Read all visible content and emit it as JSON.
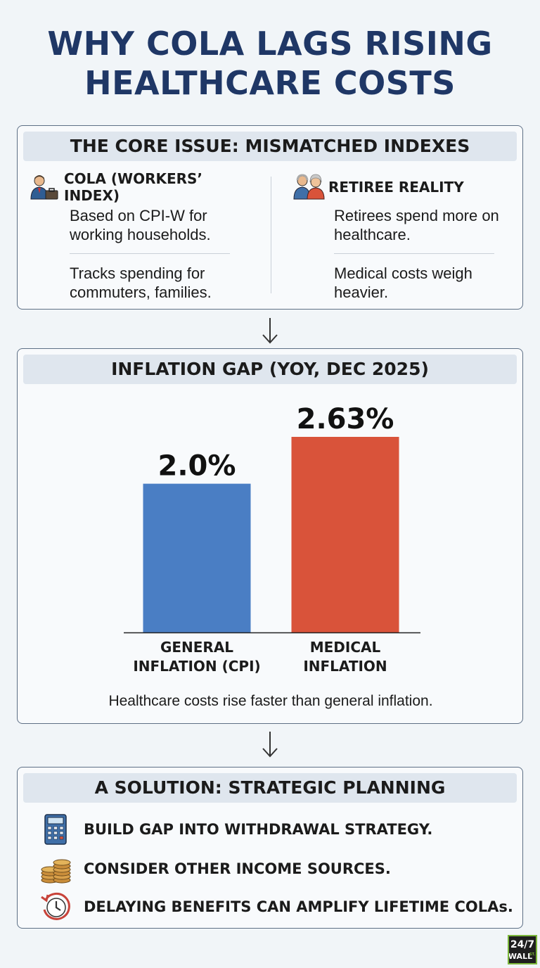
{
  "title": {
    "line1": "WHY COLA LAGS RISING",
    "line2": "HEALTHCARE COSTS"
  },
  "core": {
    "heading": "THE CORE ISSUE: MISMATCHED INDEXES",
    "left": {
      "icon": "worker-icon",
      "title": "COLA (WORKERS’ INDEX)",
      "points": [
        "Based on CPI-W for working households.",
        "Tracks spending for commuters, families."
      ]
    },
    "right": {
      "icon": "retirees-icon",
      "title": "RETIREE REALITY",
      "points": [
        "Retirees spend more on healthcare.",
        "Medical costs weigh heavier."
      ]
    }
  },
  "gap": {
    "note": "Healthcare costs rise faster than general inflation."
  },
  "chart_data": {
    "type": "bar",
    "title": "INFLATION GAP (YOY, DEC 2025)",
    "categories": [
      "GENERAL INFLATION (CPI)",
      "MEDICAL INFLATION"
    ],
    "category_lines": [
      [
        "GENERAL",
        "INFLATION (CPI)"
      ],
      [
        "MEDICAL",
        "INFLATION"
      ]
    ],
    "values": [
      2.0,
      2.63
    ],
    "value_labels": [
      "2.0%",
      "2.63%"
    ],
    "colors": [
      "#4a7ec4",
      "#d9533a"
    ],
    "ylim": [
      0,
      2.63
    ],
    "grid": false,
    "legend": "none"
  },
  "solution": {
    "heading": "A SOLUTION: STRATEGIC PLANNING",
    "items": [
      {
        "icon": "calculator-icon",
        "text": "BUILD GAP INTO WITHDRAWAL STRATEGY."
      },
      {
        "icon": "coins-icon",
        "text": "CONSIDER OTHER INCOME SOURCES."
      },
      {
        "icon": "clock-history-icon",
        "text": "DELAYING BENEFITS CAN AMPLIFY LIFETIME COLAs."
      }
    ]
  },
  "logo": {
    "line1": "24/7",
    "line2": "WALL",
    "suffix": "ST."
  }
}
